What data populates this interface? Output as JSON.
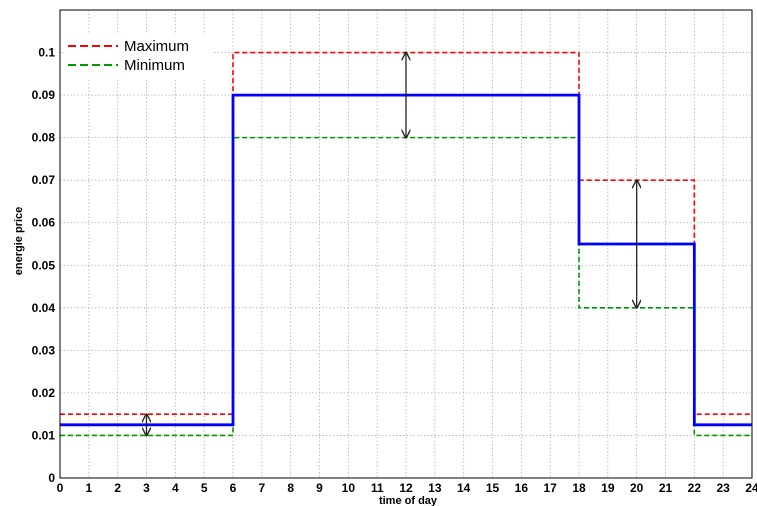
{
  "chart_data": {
    "type": "line",
    "title": "",
    "xlabel": "time of day",
    "ylabel": "energie price",
    "xlim": [
      0,
      24
    ],
    "ylim": [
      0,
      0.11
    ],
    "x_ticks": [
      "0",
      "1",
      "2",
      "3",
      "4",
      "5",
      "6",
      "7",
      "8",
      "9",
      "10",
      "11",
      "12",
      "13",
      "14",
      "15",
      "16",
      "17",
      "18",
      "19",
      "20",
      "21",
      "22",
      "23",
      "24"
    ],
    "y_ticks": [
      "0",
      "0.01",
      "0.02",
      "0.03",
      "0.04",
      "0.05",
      "0.06",
      "0.07",
      "0.08",
      "0.09",
      "0.1"
    ],
    "grid": true,
    "legend_position": "top-left",
    "series": [
      {
        "name": "Maximum",
        "style": "dashed",
        "color": "#ff0000",
        "steps": [
          [
            0,
            0.015
          ],
          [
            6,
            0.1
          ],
          [
            18,
            0.07
          ],
          [
            22,
            0.015
          ],
          [
            24,
            0.015
          ]
        ]
      },
      {
        "name": "Minimum",
        "style": "dashed",
        "color": "#009900",
        "steps": [
          [
            0,
            0.01
          ],
          [
            6,
            0.08
          ],
          [
            18,
            0.04
          ],
          [
            22,
            0.01
          ],
          [
            24,
            0.01
          ]
        ]
      },
      {
        "style": "solid",
        "color": "#0000ff",
        "steps": [
          [
            0,
            0.0125
          ],
          [
            6,
            0.09
          ],
          [
            18,
            0.055
          ],
          [
            22,
            0.0125
          ],
          [
            24,
            0.0125
          ]
        ]
      }
    ],
    "annotations": [
      {
        "type": "double-arrow",
        "x": 3,
        "y_from": 0.01,
        "y_to": 0.015
      },
      {
        "type": "double-arrow",
        "x": 12,
        "y_from": 0.08,
        "y_to": 0.1
      },
      {
        "type": "double-arrow",
        "x": 20,
        "y_from": 0.04,
        "y_to": 0.07
      }
    ]
  }
}
